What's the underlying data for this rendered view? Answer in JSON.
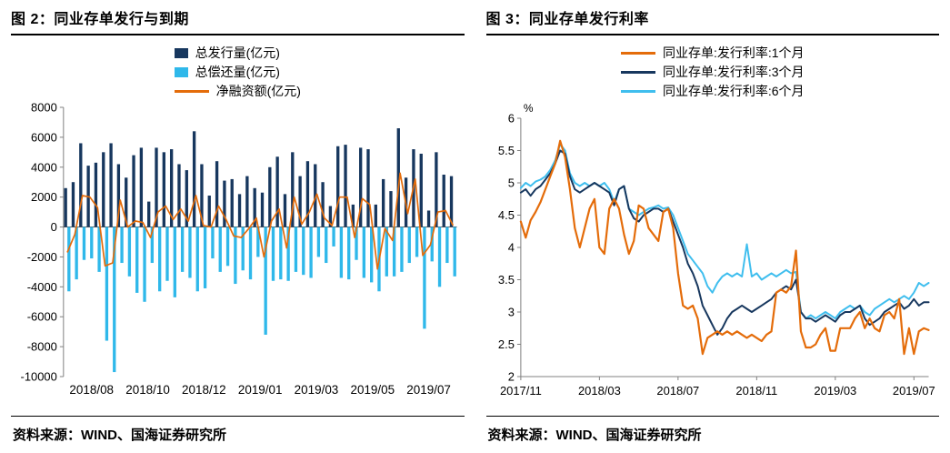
{
  "colors": {
    "navy": "#17375E",
    "light_blue": "#2FB8EA",
    "orange": "#E46C0A",
    "axis": "#808080",
    "zero_line": "#595959"
  },
  "panels": [
    {
      "title": "图 2：同业存单发行与到期",
      "source": "资料来源：WIND、国海证券研究所",
      "legend": [
        {
          "label": "总发行量(亿元)",
          "color": "#17375E",
          "marker": "square"
        },
        {
          "label": "总偿还量(亿元)",
          "color": "#2FB8EA",
          "marker": "square"
        },
        {
          "label": "净融资额(亿元)",
          "color": "#E46C0A",
          "marker": "line"
        }
      ]
    },
    {
      "title": "图 3：同业存单发行利率",
      "source": "资料来源：WIND、国海证券研究所",
      "legend": [
        {
          "label": "同业存单:发行利率:1个月",
          "color": "#E46C0A",
          "marker": "line"
        },
        {
          "label": "同业存单:发行利率:3个月",
          "color": "#17375E",
          "marker": "line"
        },
        {
          "label": "同业存单:发行利率:6个月",
          "color": "#3FBEEE",
          "marker": "line"
        }
      ]
    }
  ],
  "chart_data": [
    {
      "type": "bar",
      "title": "同业存单发行与到期",
      "unit": "亿元",
      "xlabel": "",
      "ylabel": "",
      "ylim": [
        -10000,
        8000
      ],
      "yticks": [
        8000,
        6000,
        4000,
        2000,
        0,
        -2000,
        -4000,
        -6000,
        -8000,
        -10000
      ],
      "x_frequency": "weekly",
      "xtick_labels": [
        "2018/08",
        "2018/10",
        "2018/12",
        "2019/01",
        "2019/03",
        "2019/05",
        "2019/07"
      ],
      "legend_position": "top",
      "grid": false,
      "series": [
        {
          "name": "总发行量(亿元)",
          "type": "bar",
          "color": "#17375E",
          "values": [
            2600,
            3000,
            5600,
            4100,
            4300,
            5000,
            5600,
            4200,
            3300,
            4800,
            5300,
            1700,
            5300,
            5000,
            5200,
            4200,
            3800,
            6400,
            4200,
            2100,
            4400,
            3100,
            3200,
            2200,
            3400,
            2600,
            2300,
            4000,
            4700,
            2200,
            5000,
            3400,
            4400,
            4200,
            3000,
            1400,
            5400,
            5500,
            1500,
            5300,
            5200,
            1500,
            3200,
            2400,
            6600,
            3300,
            5200,
            4900,
            1100,
            5000,
            3500,
            3400
          ]
        },
        {
          "name": "总偿还量(亿元)",
          "type": "bar",
          "color": "#2FB8EA",
          "values": [
            -4300,
            -3500,
            -2200,
            -2100,
            -3000,
            -7600,
            -9700,
            -2400,
            -3300,
            -4400,
            -5000,
            -2400,
            -4300,
            -3600,
            -4700,
            -3000,
            -3400,
            -4300,
            -4100,
            -2100,
            -3000,
            -2600,
            -3800,
            -2900,
            -3500,
            -2000,
            -7200,
            -3600,
            -3500,
            -3600,
            -3000,
            -3200,
            -3400,
            -2000,
            -2400,
            -1300,
            -3400,
            -3500,
            -2200,
            -3400,
            -3700,
            -4300,
            -3300,
            -3300,
            -3000,
            -2400,
            -2000,
            -6800,
            -2300,
            -4000,
            -2400,
            -3300
          ]
        },
        {
          "name": "净融资额(亿元)",
          "type": "line",
          "color": "#E46C0A",
          "values": [
            -1700,
            -500,
            2100,
            2000,
            1300,
            -2600,
            -2400,
            1800,
            0,
            400,
            300,
            -700,
            1000,
            1400,
            500,
            1200,
            400,
            2100,
            100,
            0,
            1400,
            500,
            -600,
            -700,
            -100,
            600,
            -2000,
            400,
            1200,
            -1400,
            2000,
            200,
            1000,
            2200,
            600,
            100,
            2000,
            2000,
            -700,
            1900,
            1500,
            -2800,
            -100,
            -900,
            3600,
            900,
            3200,
            -1900,
            -1200,
            1000,
            1100,
            100
          ]
        }
      ]
    },
    {
      "type": "line",
      "title": "同业存单发行利率",
      "xlabel": "",
      "ylabel": "%",
      "ylim": [
        2,
        6
      ],
      "yticks": [
        2,
        2.5,
        3,
        3.5,
        4,
        4.5,
        5,
        5.5,
        6
      ],
      "x_frequency": "weekly",
      "xticks": [
        0,
        16,
        32,
        48,
        64,
        80
      ],
      "xtick_labels": [
        "2017/11",
        "2018/03",
        "2018/07",
        "2018/11",
        "2019/03",
        "2019/07"
      ],
      "legend_position": "top",
      "grid": false,
      "series": [
        {
          "name": "同业存单:发行利率:1个月",
          "color": "#E46C0A",
          "width": 2.2,
          "values": [
            4.4,
            4.15,
            4.42,
            4.55,
            4.7,
            4.9,
            5.1,
            5.3,
            5.65,
            5.4,
            4.9,
            4.3,
            4.0,
            4.3,
            4.6,
            4.75,
            4.0,
            3.9,
            4.6,
            4.75,
            4.6,
            4.2,
            3.9,
            4.1,
            4.65,
            4.6,
            4.3,
            4.2,
            4.1,
            4.55,
            4.6,
            4.3,
            3.6,
            3.1,
            3.05,
            3.1,
            2.9,
            2.35,
            2.6,
            2.65,
            2.7,
            2.65,
            2.7,
            2.65,
            2.7,
            2.65,
            2.6,
            2.65,
            2.6,
            2.55,
            2.65,
            2.7,
            3.3,
            3.35,
            3.3,
            3.4,
            3.95,
            2.7,
            2.45,
            2.45,
            2.5,
            2.65,
            2.75,
            2.4,
            2.4,
            2.75,
            2.75,
            2.75,
            2.9,
            3.0,
            2.75,
            2.9,
            2.75,
            2.7,
            2.95,
            3.0,
            2.9,
            3.2,
            2.35,
            2.75,
            2.35,
            2.7,
            2.75,
            2.72
          ]
        },
        {
          "name": "同业存单:发行利率:3个月",
          "color": "#17375E",
          "width": 2,
          "values": [
            4.85,
            4.9,
            4.8,
            4.9,
            4.95,
            5.05,
            5.15,
            5.3,
            5.5,
            5.45,
            5.1,
            4.9,
            4.85,
            4.9,
            4.95,
            5.0,
            4.95,
            4.9,
            4.85,
            4.65,
            4.9,
            4.95,
            4.6,
            4.45,
            4.4,
            4.5,
            4.55,
            4.6,
            4.6,
            4.55,
            4.6,
            4.4,
            4.2,
            4.0,
            3.75,
            3.6,
            3.4,
            3.1,
            2.95,
            2.8,
            2.65,
            2.75,
            2.9,
            3.0,
            3.05,
            3.1,
            3.05,
            3.0,
            3.05,
            3.1,
            3.15,
            3.2,
            3.3,
            3.35,
            3.4,
            3.35,
            3.5,
            3.0,
            2.9,
            2.9,
            2.85,
            2.9,
            2.95,
            2.9,
            2.85,
            2.95,
            3.0,
            3.0,
            3.05,
            3.1,
            2.9,
            2.8,
            2.85,
            2.9,
            3.0,
            3.05,
            3.1,
            3.15,
            3.05,
            3.1,
            3.2,
            3.1,
            3.15,
            3.15
          ]
        },
        {
          "name": "同业存单:发行利率:6个月",
          "color": "#3FBEEE",
          "width": 2,
          "values": [
            4.92,
            5.0,
            4.95,
            5.02,
            5.05,
            5.1,
            5.2,
            5.35,
            5.6,
            5.5,
            5.15,
            5.0,
            4.95,
            5.0,
            4.95,
            5.0,
            4.95,
            5.0,
            4.9,
            4.7,
            4.9,
            4.95,
            4.6,
            4.55,
            4.5,
            4.55,
            4.6,
            4.62,
            4.65,
            4.6,
            4.62,
            4.5,
            4.3,
            4.1,
            3.9,
            3.8,
            3.7,
            3.6,
            3.4,
            3.3,
            3.45,
            3.55,
            3.6,
            3.55,
            3.6,
            3.55,
            4.05,
            3.55,
            3.6,
            3.5,
            3.55,
            3.6,
            3.55,
            3.6,
            3.65,
            3.6,
            3.62,
            3.0,
            2.9,
            2.95,
            2.9,
            2.95,
            3.0,
            2.95,
            2.9,
            3.0,
            3.05,
            3.1,
            3.05,
            3.1,
            3.0,
            2.95,
            3.05,
            3.1,
            3.15,
            3.2,
            3.15,
            3.2,
            3.25,
            3.2,
            3.3,
            3.45,
            3.4,
            3.45
          ]
        }
      ]
    }
  ]
}
